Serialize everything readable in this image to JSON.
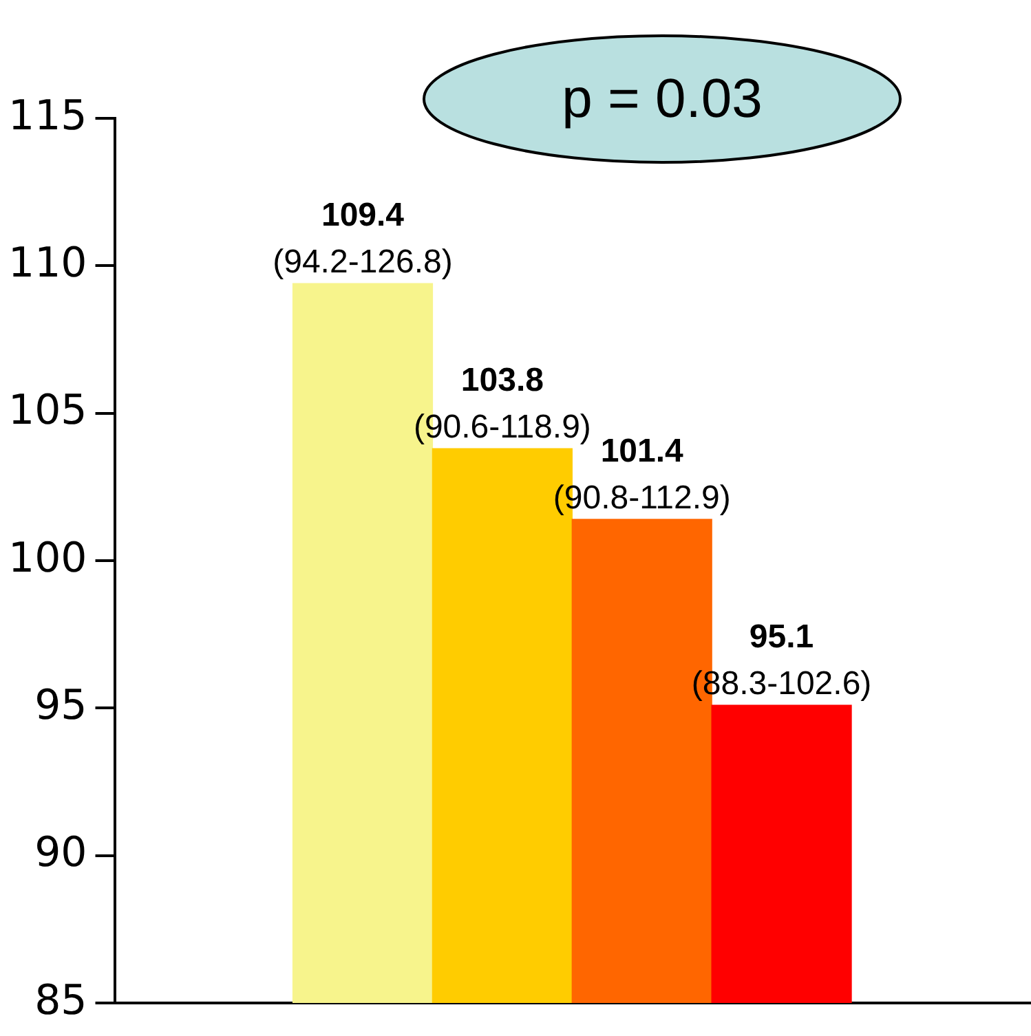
{
  "chart_data": {
    "type": "bar",
    "categories": [
      null,
      null,
      null,
      null
    ],
    "values": [
      109.4,
      103.8,
      101.4,
      95.1
    ],
    "colors": [
      "#f7f48c",
      "#ffcc00",
      "#ff6600",
      "#ff0000"
    ],
    "value_labels": [
      "109.4\n(94.2-126.8)",
      "103.8\n(90.6-118.9)",
      "101.4\n(90.8-112.9)",
      "95.1\n(88.3-102.6)"
    ],
    "ylim": [
      85,
      115
    ],
    "yticks": [
      85,
      90,
      95,
      100,
      105,
      110,
      115
    ],
    "grid": false,
    "legend": false,
    "annotations": [
      "p = 0.03"
    ]
  }
}
